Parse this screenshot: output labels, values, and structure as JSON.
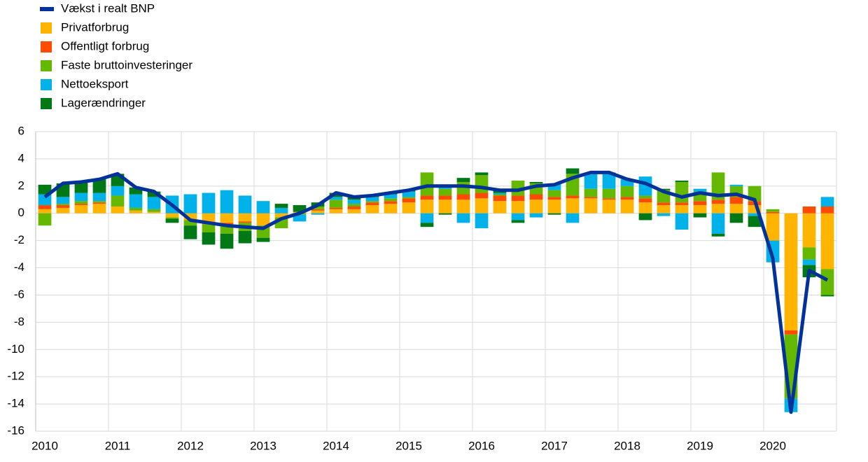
{
  "chart_data": {
    "type": "bar",
    "stacked": true,
    "grid": true,
    "legend": "top-left",
    "categories": [
      "2010",
      null,
      null,
      null,
      "2011",
      null,
      null,
      null,
      "2012",
      null,
      null,
      null,
      "2013",
      null,
      null,
      null,
      "2014",
      null,
      null,
      null,
      "2015",
      null,
      null,
      null,
      "2016",
      null,
      null,
      null,
      "2017",
      null,
      null,
      null,
      "2018",
      null,
      null,
      null,
      "2019",
      null,
      null,
      null,
      "2020",
      null,
      null,
      null
    ],
    "ylim": [
      -16,
      6
    ],
    "yticks": [
      6,
      4,
      2,
      0,
      -2,
      -4,
      -6,
      -8,
      -10,
      -12,
      -14,
      -16
    ],
    "series": [
      {
        "name": "Vækst i realt BNP",
        "type": "line",
        "color": "#003299",
        "values": [
          1.2,
          2.2,
          2.3,
          2.5,
          2.9,
          1.9,
          1.6,
          0.6,
          -0.5,
          -0.7,
          -0.9,
          -1.0,
          -1.1,
          -0.4,
          0.0,
          0.6,
          1.5,
          1.2,
          1.3,
          1.5,
          1.7,
          2.0,
          2.0,
          2.0,
          1.9,
          1.7,
          1.7,
          2.0,
          2.1,
          2.6,
          3.0,
          3.0,
          2.5,
          2.2,
          1.6,
          1.2,
          1.5,
          1.3,
          1.4,
          1.0,
          -3.3,
          -14.6,
          -4.2,
          -4.9
        ]
      },
      {
        "name": "Privatforbrug",
        "color": "#ffb400",
        "values": [
          0.3,
          0.4,
          0.6,
          0.7,
          0.5,
          0.2,
          0.1,
          -0.3,
          -0.5,
          -0.7,
          -0.7,
          -0.6,
          -0.9,
          -0.3,
          0.1,
          0.2,
          0.3,
          0.3,
          0.6,
          0.7,
          0.8,
          1.0,
          1.0,
          1.0,
          1.1,
          0.9,
          0.9,
          1.0,
          1.0,
          1.1,
          1.1,
          1.0,
          1.0,
          0.8,
          0.6,
          0.6,
          0.6,
          0.7,
          0.7,
          0.6,
          -2.0,
          -8.6,
          -2.5,
          -4.1
        ]
      },
      {
        "name": "Offentligt forbrug",
        "color": "#ff4b00",
        "values": [
          0.3,
          0.2,
          0.1,
          0.1,
          0.0,
          0.0,
          0.0,
          0.0,
          0.0,
          -0.1,
          -0.1,
          -0.1,
          0.0,
          0.0,
          0.0,
          0.1,
          0.1,
          0.2,
          0.2,
          0.2,
          0.3,
          0.3,
          0.3,
          0.4,
          0.4,
          0.4,
          0.4,
          0.4,
          0.2,
          0.2,
          0.1,
          0.1,
          0.2,
          0.3,
          0.2,
          0.2,
          0.3,
          0.3,
          0.5,
          0.3,
          0.1,
          -0.3,
          0.5,
          0.5
        ]
      },
      {
        "name": "Faste bruttoinvesteringer",
        "color": "#65b800",
        "values": [
          -0.9,
          0.1,
          0.2,
          0.1,
          0.8,
          0.2,
          0.2,
          -0.1,
          -0.4,
          -0.6,
          -0.7,
          -0.6,
          -0.9,
          -0.8,
          -0.1,
          0.2,
          0.6,
          0.2,
          0.1,
          0.2,
          0.1,
          1.7,
          0.5,
          0.9,
          1.3,
          0.1,
          1.1,
          0.8,
          0.5,
          1.6,
          0.6,
          0.7,
          0.8,
          0.2,
          0.9,
          1.5,
          0.7,
          2.0,
          0.8,
          1.1,
          0.2,
          -4.7,
          -0.9,
          -1.9
        ]
      },
      {
        "name": "Nettoeksport",
        "color": "#00b1ea",
        "values": [
          0.8,
          0.5,
          0.6,
          0.6,
          0.7,
          1.0,
          0.9,
          1.3,
          1.4,
          1.5,
          1.7,
          1.3,
          0.9,
          0.4,
          -0.5,
          -0.1,
          0.2,
          0.3,
          0.3,
          0.3,
          0.4,
          -0.7,
          0.3,
          -0.7,
          -1.1,
          0.1,
          -0.5,
          -0.3,
          0.5,
          -0.7,
          1.2,
          1.2,
          0.5,
          1.4,
          -0.2,
          -1.2,
          0.2,
          -1.5,
          0.1,
          -0.2,
          -1.6,
          -1.0,
          -0.4,
          0.7
        ]
      },
      {
        "name": "Lagerændringer",
        "color": "#007816",
        "values": [
          0.7,
          1.0,
          0.8,
          1.0,
          0.9,
          0.5,
          0.4,
          -0.3,
          -1.0,
          -0.9,
          -1.1,
          -0.9,
          -0.3,
          0.3,
          0.5,
          0.3,
          0.3,
          0.2,
          0.1,
          0.1,
          0.1,
          -0.3,
          -0.1,
          0.3,
          0.2,
          0.2,
          -0.2,
          0.1,
          -0.1,
          0.4,
          0.0,
          0.0,
          0.0,
          -0.5,
          0.1,
          0.1,
          -0.3,
          -0.2,
          -0.7,
          -0.8,
          0.0,
          0.0,
          -0.9,
          -0.1
        ]
      }
    ]
  }
}
